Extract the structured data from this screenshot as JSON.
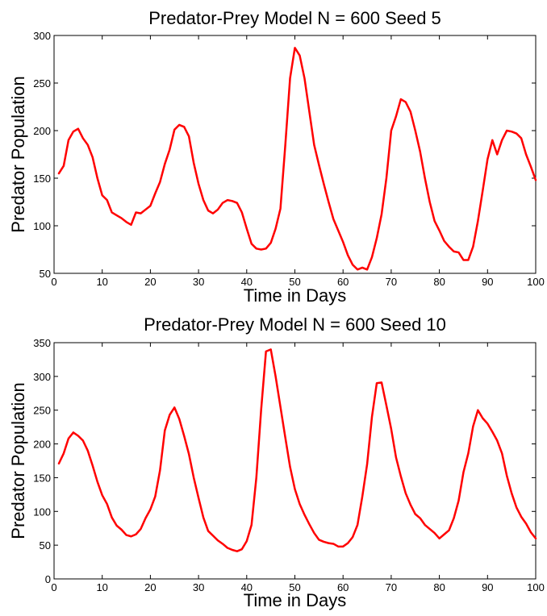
{
  "chart_data": [
    {
      "type": "line",
      "title": "Predator-Prey Model N = 600 Seed 5",
      "xlabel": "Time in Days",
      "ylabel": "Predator Population",
      "xlim": [
        0,
        100
      ],
      "ylim": [
        50,
        300
      ],
      "xticks": [
        0,
        10,
        20,
        30,
        40,
        50,
        60,
        70,
        80,
        90,
        100
      ],
      "yticks": [
        50,
        100,
        150,
        200,
        250,
        300
      ],
      "grid": false,
      "line_color": "#ff0000",
      "series": [
        {
          "x": [
            1,
            2,
            3,
            4,
            5,
            6,
            7,
            8,
            9,
            10,
            11,
            12,
            13,
            14,
            15,
            16,
            17,
            18,
            19,
            20,
            21,
            22,
            23,
            24,
            25,
            26,
            27,
            28,
            29,
            30,
            31,
            32,
            33,
            34,
            35,
            36,
            37,
            38,
            39,
            40,
            41,
            42,
            43,
            44,
            45,
            46,
            47,
            48,
            49,
            50,
            51,
            52,
            53,
            54,
            55,
            56,
            57,
            58,
            59,
            60,
            61,
            62,
            63,
            64,
            65,
            66,
            67,
            68,
            69,
            70,
            71,
            72,
            73,
            74,
            75,
            76,
            77,
            78,
            79,
            80,
            81,
            82,
            83,
            84,
            85,
            86,
            87,
            88,
            89,
            90,
            91,
            92,
            93,
            94,
            95,
            96,
            97,
            98,
            99,
            100
          ],
          "values": [
            155,
            163,
            190,
            199,
            202,
            192,
            185,
            172,
            150,
            132,
            127,
            114,
            111,
            108,
            104,
            101,
            114,
            113,
            117,
            121,
            134,
            146,
            165,
            180,
            201,
            206,
            204,
            194,
            166,
            144,
            127,
            116,
            113,
            117,
            124,
            127,
            126,
            124,
            114,
            97,
            81,
            76,
            75,
            76,
            82,
            97,
            118,
            184,
            255,
            287,
            279,
            255,
            220,
            185,
            164,
            144,
            125,
            107,
            95,
            83,
            69,
            59,
            54,
            56,
            54,
            67,
            87,
            112,
            150,
            200,
            215,
            233,
            230,
            220,
            200,
            178,
            150,
            125,
            105,
            95,
            84,
            78,
            73,
            72,
            64,
            64,
            78,
            105,
            137,
            170,
            190,
            175,
            190,
            200,
            199,
            197,
            192,
            175,
            162,
            148
          ]
        }
      ]
    },
    {
      "type": "line",
      "title": "Predator-Prey Model N = 600 Seed 10",
      "xlabel": "Time in Days",
      "ylabel": "Predator Population",
      "xlim": [
        0,
        100
      ],
      "ylim": [
        0,
        350
      ],
      "xticks": [
        0,
        10,
        20,
        30,
        40,
        50,
        60,
        70,
        80,
        90,
        100
      ],
      "yticks": [
        0,
        50,
        100,
        150,
        200,
        250,
        300,
        350
      ],
      "grid": false,
      "line_color": "#ff0000",
      "series": [
        {
          "x": [
            1,
            2,
            3,
            4,
            5,
            6,
            7,
            8,
            9,
            10,
            11,
            12,
            13,
            14,
            15,
            16,
            17,
            18,
            19,
            20,
            21,
            22,
            23,
            24,
            25,
            26,
            27,
            28,
            29,
            30,
            31,
            32,
            33,
            34,
            35,
            36,
            37,
            38,
            39,
            40,
            41,
            42,
            43,
            44,
            45,
            46,
            47,
            48,
            49,
            50,
            51,
            52,
            53,
            54,
            55,
            56,
            57,
            58,
            59,
            60,
            61,
            62,
            63,
            64,
            65,
            66,
            67,
            68,
            69,
            70,
            71,
            72,
            73,
            74,
            75,
            76,
            77,
            78,
            79,
            80,
            81,
            82,
            83,
            84,
            85,
            86,
            87,
            88,
            89,
            90,
            91,
            92,
            93,
            94,
            95,
            96,
            97,
            98,
            99,
            100
          ],
          "values": [
            171,
            186,
            208,
            217,
            212,
            205,
            190,
            168,
            144,
            124,
            111,
            91,
            79,
            73,
            65,
            63,
            66,
            74,
            90,
            103,
            122,
            161,
            220,
            243,
            254,
            237,
            212,
            185,
            150,
            120,
            91,
            71,
            64,
            57,
            52,
            46,
            43,
            41,
            44,
            56,
            80,
            150,
            251,
            337,
            340,
            300,
            255,
            210,
            166,
            133,
            111,
            95,
            81,
            68,
            58,
            55,
            53,
            52,
            48,
            48,
            53,
            62,
            80,
            122,
            170,
            240,
            290,
            291,
            257,
            222,
            180,
            152,
            127,
            110,
            96,
            90,
            80,
            74,
            68,
            60,
            66,
            72,
            90,
            116,
            158,
            186,
            226,
            250,
            238,
            230,
            218,
            205,
            186,
            153,
            127,
            106,
            92,
            82,
            69,
            60
          ]
        }
      ]
    }
  ]
}
